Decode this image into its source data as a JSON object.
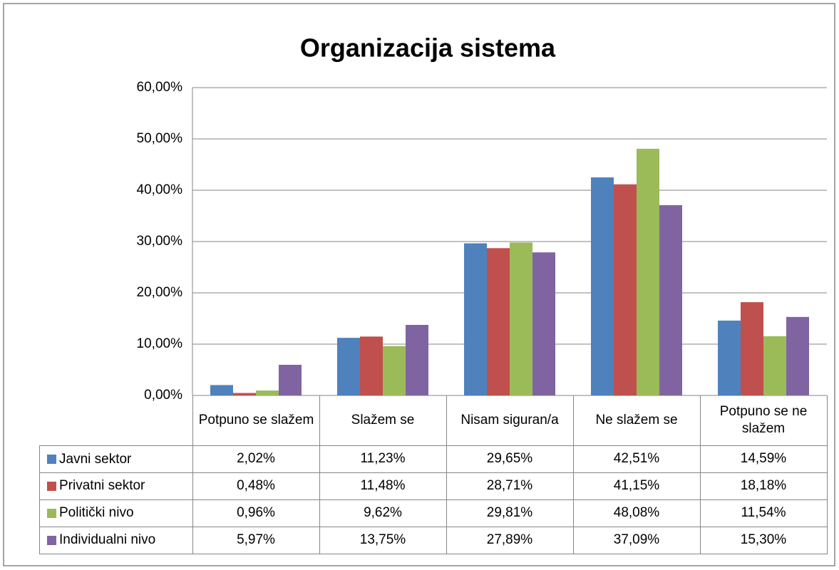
{
  "chart_data": {
    "type": "bar",
    "title": "Organizacija sistema",
    "categories": [
      "Potpuno se slažem",
      "Slažem se",
      "Nisam siguran/a",
      "Ne slažem se",
      "Potpuno se ne slažem"
    ],
    "series": [
      {
        "name": "Javni sektor",
        "color": "#4f81bd",
        "values": [
          2.02,
          11.23,
          29.65,
          42.51,
          14.59
        ],
        "value_labels": [
          "2,02%",
          "11,23%",
          "29,65%",
          "42,51%",
          "14,59%"
        ]
      },
      {
        "name": "Privatni sektor",
        "color": "#c0504d",
        "values": [
          0.48,
          11.48,
          28.71,
          41.15,
          18.18
        ],
        "value_labels": [
          "0,48%",
          "11,48%",
          "28,71%",
          "41,15%",
          "18,18%"
        ]
      },
      {
        "name": "Politički nivo",
        "color": "#9bbb59",
        "values": [
          0.96,
          9.62,
          29.81,
          48.08,
          11.54
        ],
        "value_labels": [
          "0,96%",
          "9,62%",
          "29,81%",
          "48,08%",
          "11,54%"
        ]
      },
      {
        "name": "Individualni nivo",
        "color": "#8064a2",
        "values": [
          5.97,
          13.75,
          27.89,
          37.09,
          15.3
        ],
        "value_labels": [
          "5,97%",
          "13,75%",
          "27,89%",
          "37,09%",
          "15,30%"
        ]
      }
    ],
    "ylim": [
      0,
      60
    ],
    "yticks": [
      {
        "value": 0,
        "label": "0,00%"
      },
      {
        "value": 10,
        "label": "10,00%"
      },
      {
        "value": 20,
        "label": "20,00%"
      },
      {
        "value": 30,
        "label": "30,00%"
      },
      {
        "value": 40,
        "label": "40,00%"
      },
      {
        "value": 50,
        "label": "50,00%"
      },
      {
        "value": 60,
        "label": "60,00%"
      }
    ],
    "grid": true
  }
}
